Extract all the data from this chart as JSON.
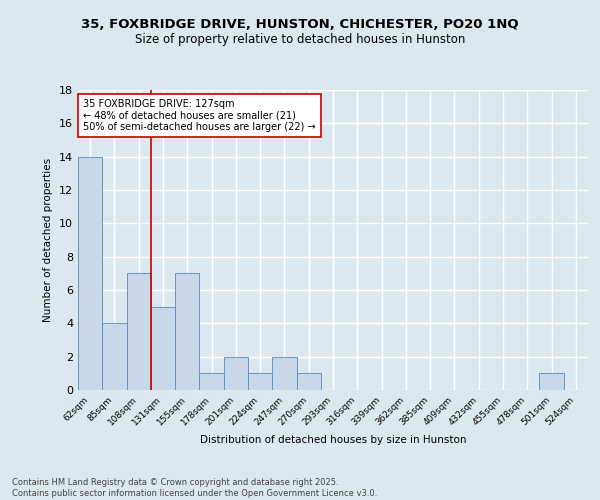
{
  "title1": "35, FOXBRIDGE DRIVE, HUNSTON, CHICHESTER, PO20 1NQ",
  "title2": "Size of property relative to detached houses in Hunston",
  "xlabel": "Distribution of detached houses by size in Hunston",
  "ylabel": "Number of detached properties",
  "footer1": "Contains HM Land Registry data © Crown copyright and database right 2025.",
  "footer2": "Contains public sector information licensed under the Open Government Licence v3.0.",
  "bar_labels": [
    "62sqm",
    "85sqm",
    "108sqm",
    "131sqm",
    "155sqm",
    "178sqm",
    "201sqm",
    "224sqm",
    "247sqm",
    "270sqm",
    "293sqm",
    "316sqm",
    "339sqm",
    "362sqm",
    "385sqm",
    "409sqm",
    "432sqm",
    "455sqm",
    "478sqm",
    "501sqm",
    "524sqm"
  ],
  "bar_values": [
    14,
    4,
    7,
    5,
    7,
    1,
    2,
    1,
    2,
    1,
    0,
    0,
    0,
    0,
    0,
    0,
    0,
    0,
    0,
    1,
    0
  ],
  "bar_color": "#c8d8e8",
  "bar_edge_color": "#5588bb",
  "background_color": "#dce8f0",
  "grid_color": "#ffffff",
  "vline_x": 2.5,
  "vline_color": "#cc0000",
  "annotation_text": "35 FOXBRIDGE DRIVE: 127sqm\n← 48% of detached houses are smaller (21)\n50% of semi-detached houses are larger (22) →",
  "annotation_box_color": "#ffffff",
  "annotation_box_edge": "#cc0000",
  "ylim": [
    0,
    18
  ],
  "yticks": [
    0,
    2,
    4,
    6,
    8,
    10,
    12,
    14,
    16,
    18
  ]
}
